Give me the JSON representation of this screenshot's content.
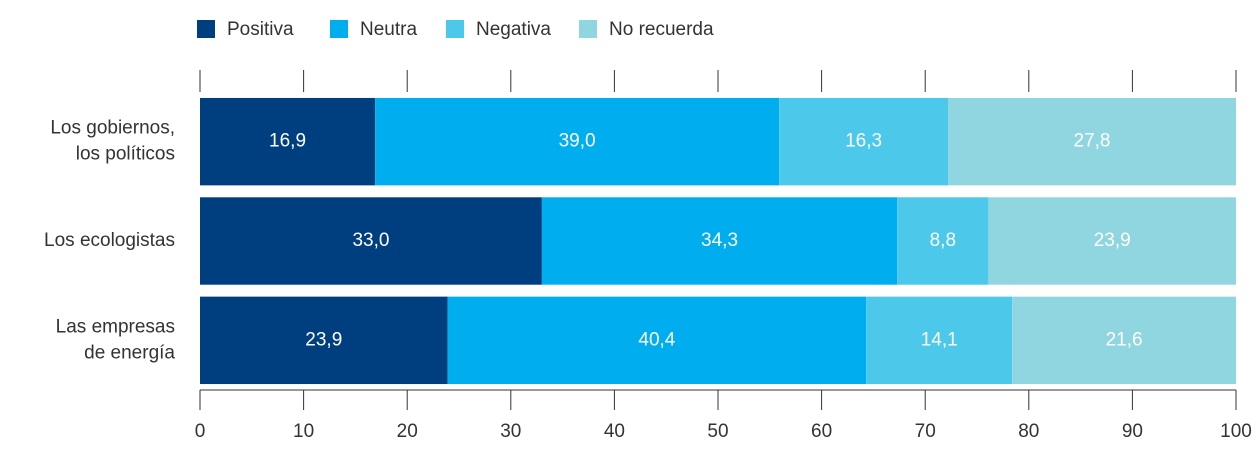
{
  "chart_data": {
    "type": "stacked_barh",
    "categories": [
      "Los gobiernos,\nlos políticos",
      "Los ecologistas",
      "Las empresas\nde energía"
    ],
    "series": [
      {
        "name": "Positiva",
        "color": "#003f7f",
        "values": [
          16.9,
          33.0,
          23.9
        ],
        "value_labels": [
          "16,9",
          "33,0",
          "23,9"
        ]
      },
      {
        "name": "Neutra",
        "color": "#00aeef",
        "values": [
          39.0,
          34.3,
          40.4
        ],
        "value_labels": [
          "39,0",
          "34,3",
          "40,4"
        ]
      },
      {
        "name": "Negativa",
        "color": "#4cc8ea",
        "values": [
          16.3,
          8.8,
          14.1
        ],
        "value_labels": [
          "16,3",
          "8,8",
          "14,1"
        ]
      },
      {
        "name": "No recuerda",
        "color": "#90d6e0",
        "values": [
          27.8,
          23.9,
          21.6
        ],
        "value_labels": [
          "27,8",
          "23,9",
          "21,6"
        ]
      }
    ],
    "xlim": [
      0,
      100
    ],
    "xticks": [
      0,
      10,
      20,
      30,
      40,
      50,
      60,
      70,
      80,
      90,
      100
    ],
    "legend": "top"
  }
}
